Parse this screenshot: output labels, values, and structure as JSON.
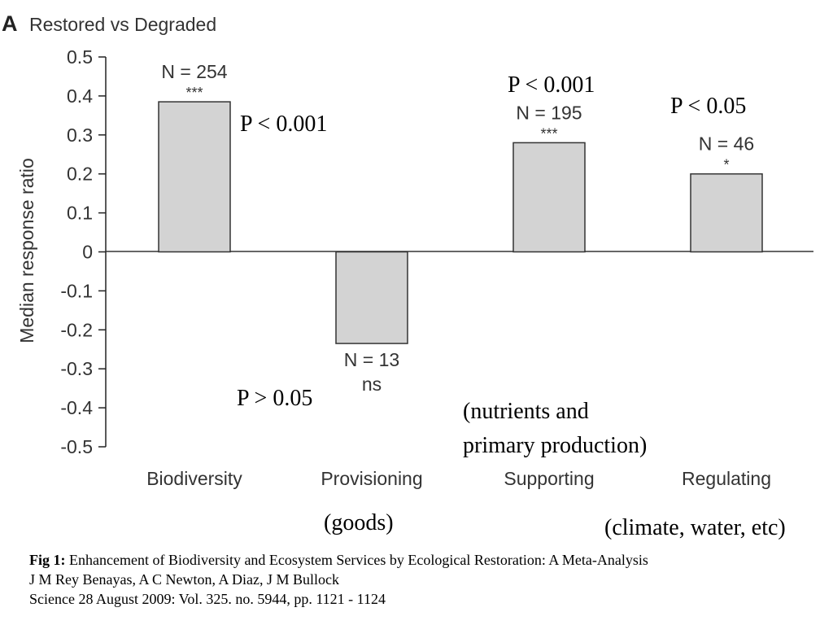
{
  "panel": {
    "letter": "A",
    "title": "Restored vs Degraded"
  },
  "chart_data": {
    "type": "bar",
    "categories": [
      "Biodiversity",
      "Provisioning",
      "Supporting",
      "Regulating"
    ],
    "values": [
      0.385,
      -0.235,
      0.28,
      0.2
    ],
    "n_labels": [
      "N = 254",
      "N = 13",
      "N = 195",
      "N = 46"
    ],
    "significance": [
      "***",
      "ns",
      "***",
      "*"
    ],
    "ylabel": "Median response ratio",
    "ylim": [
      -0.5,
      0.5
    ],
    "yticks": [
      "0.5",
      "0.4",
      "0.3",
      "0.2",
      "0.1",
      "0",
      "-0.1",
      "-0.2",
      "-0.3",
      "-0.4",
      "-0.5"
    ],
    "bar_color": "#d3d3d3",
    "p_values": [
      "P < 0.001",
      "P > 0.05",
      "P < 0.001",
      "P < 0.05"
    ],
    "annotations": {
      "supporting": [
        "(nutrients and",
        "primary production)"
      ],
      "provisioning": "(goods)",
      "regulating": "(climate, water, etc)"
    }
  },
  "caption": {
    "label": "Fig 1:",
    "title": " Enhancement of Biodiversity and Ecosystem Services by Ecological Restoration: A Meta-Analysis",
    "authors": "J M Rey Benayas, A C Newton, A Diaz, J M Bullock",
    "citation": "Science 28 August 2009:  Vol. 325. no. 5944, pp. 1121 - 1124"
  }
}
